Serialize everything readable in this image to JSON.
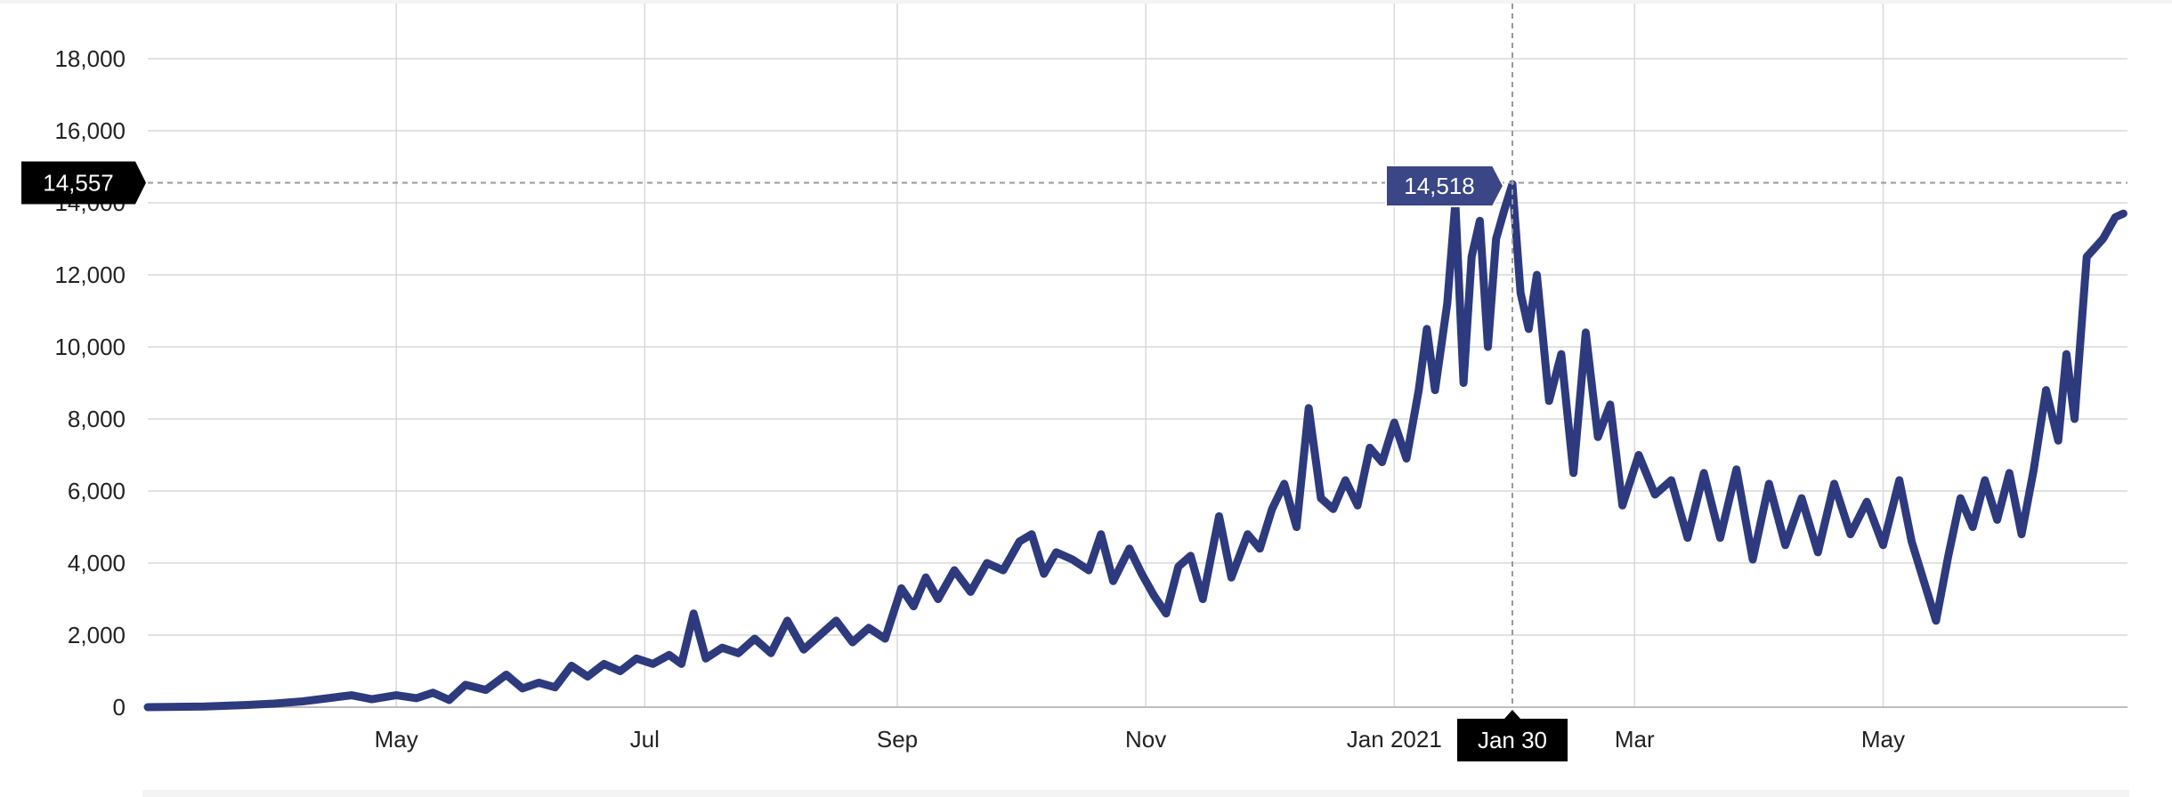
{
  "colors": {
    "line": "#2e3a7e",
    "grid": "#d9d9d9",
    "crosshair": "#9a9a9a",
    "flag_dark": "#000000",
    "flag_point": "#3a4685"
  },
  "chart_data": {
    "type": "line",
    "title": "",
    "xlabel": "",
    "ylabel": "",
    "x_range": [
      "2020-03-01",
      "2021-06-30"
    ],
    "ylim": [
      0,
      18000
    ],
    "y_ticks": [
      0,
      2000,
      4000,
      6000,
      8000,
      10000,
      12000,
      14000,
      16000,
      18000
    ],
    "y_tick_labels": [
      "0",
      "2,000",
      "4,000",
      "6,000",
      "8,000",
      "10,000",
      "12,000",
      "14,000",
      "16,000",
      "18,000"
    ],
    "x_ticks": [
      {
        "date": "2020-05-01",
        "label": "May"
      },
      {
        "date": "2020-07-01",
        "label": "Jul"
      },
      {
        "date": "2020-09-01",
        "label": "Sep"
      },
      {
        "date": "2020-11-01",
        "label": "Nov"
      },
      {
        "date": "2021-01-01",
        "label": "Jan 2021"
      },
      {
        "date": "2021-03-01",
        "label": "Mar"
      },
      {
        "date": "2021-05-01",
        "label": "May"
      }
    ],
    "grid": true,
    "series": [
      {
        "points": [
          [
            "2020-03-01",
            0
          ],
          [
            "2020-03-15",
            20
          ],
          [
            "2020-03-25",
            60
          ],
          [
            "2020-04-01",
            100
          ],
          [
            "2020-04-08",
            160
          ],
          [
            "2020-04-15",
            260
          ],
          [
            "2020-04-20",
            330
          ],
          [
            "2020-04-25",
            220
          ],
          [
            "2020-05-01",
            330
          ],
          [
            "2020-05-06",
            250
          ],
          [
            "2020-05-10",
            400
          ],
          [
            "2020-05-14",
            200
          ],
          [
            "2020-05-18",
            620
          ],
          [
            "2020-05-23",
            480
          ],
          [
            "2020-05-28",
            900
          ],
          [
            "2020-06-01",
            520
          ],
          [
            "2020-06-05",
            680
          ],
          [
            "2020-06-09",
            550
          ],
          [
            "2020-06-13",
            1150
          ],
          [
            "2020-06-17",
            850
          ],
          [
            "2020-06-21",
            1200
          ],
          [
            "2020-06-25",
            1000
          ],
          [
            "2020-06-29",
            1350
          ],
          [
            "2020-07-03",
            1200
          ],
          [
            "2020-07-07",
            1450
          ],
          [
            "2020-07-10",
            1200
          ],
          [
            "2020-07-13",
            2600
          ],
          [
            "2020-07-16",
            1350
          ],
          [
            "2020-07-20",
            1650
          ],
          [
            "2020-07-24",
            1500
          ],
          [
            "2020-07-28",
            1900
          ],
          [
            "2020-08-01",
            1500
          ],
          [
            "2020-08-05",
            2400
          ],
          [
            "2020-08-09",
            1600
          ],
          [
            "2020-08-13",
            2000
          ],
          [
            "2020-08-17",
            2400
          ],
          [
            "2020-08-21",
            1800
          ],
          [
            "2020-08-25",
            2200
          ],
          [
            "2020-08-29",
            1900
          ],
          [
            "2020-09-02",
            3300
          ],
          [
            "2020-09-05",
            2800
          ],
          [
            "2020-09-08",
            3600
          ],
          [
            "2020-09-11",
            3000
          ],
          [
            "2020-09-15",
            3800
          ],
          [
            "2020-09-19",
            3200
          ],
          [
            "2020-09-23",
            4000
          ],
          [
            "2020-09-27",
            3800
          ],
          [
            "2020-10-01",
            4600
          ],
          [
            "2020-10-04",
            4800
          ],
          [
            "2020-10-07",
            3700
          ],
          [
            "2020-10-10",
            4300
          ],
          [
            "2020-10-14",
            4100
          ],
          [
            "2020-10-18",
            3800
          ],
          [
            "2020-10-21",
            4800
          ],
          [
            "2020-10-24",
            3500
          ],
          [
            "2020-10-28",
            4400
          ],
          [
            "2020-10-31",
            3700
          ],
          [
            "2020-11-03",
            3100
          ],
          [
            "2020-11-06",
            2600
          ],
          [
            "2020-11-09",
            3900
          ],
          [
            "2020-11-12",
            4200
          ],
          [
            "2020-11-15",
            3000
          ],
          [
            "2020-11-19",
            5300
          ],
          [
            "2020-11-22",
            3600
          ],
          [
            "2020-11-26",
            4800
          ],
          [
            "2020-11-29",
            4400
          ],
          [
            "2020-12-02",
            5500
          ],
          [
            "2020-12-05",
            6200
          ],
          [
            "2020-12-08",
            5000
          ],
          [
            "2020-12-11",
            8300
          ],
          [
            "2020-12-14",
            5800
          ],
          [
            "2020-12-17",
            5500
          ],
          [
            "2020-12-20",
            6300
          ],
          [
            "2020-12-23",
            5600
          ],
          [
            "2020-12-26",
            7200
          ],
          [
            "2020-12-29",
            6800
          ],
          [
            "2021-01-01",
            7900
          ],
          [
            "2021-01-04",
            6900
          ],
          [
            "2021-01-07",
            8800
          ],
          [
            "2021-01-09",
            10500
          ],
          [
            "2021-01-11",
            8800
          ],
          [
            "2021-01-14",
            11200
          ],
          [
            "2021-01-16",
            14000
          ],
          [
            "2021-01-18",
            9000
          ],
          [
            "2021-01-20",
            12500
          ],
          [
            "2021-01-22",
            13500
          ],
          [
            "2021-01-24",
            10000
          ],
          [
            "2021-01-26",
            13000
          ],
          [
            "2021-01-28",
            13800
          ],
          [
            "2021-01-30",
            14518
          ],
          [
            "2021-02-01",
            11500
          ],
          [
            "2021-02-03",
            10500
          ],
          [
            "2021-02-05",
            12000
          ],
          [
            "2021-02-08",
            8500
          ],
          [
            "2021-02-11",
            9800
          ],
          [
            "2021-02-14",
            6500
          ],
          [
            "2021-02-17",
            10400
          ],
          [
            "2021-02-20",
            7500
          ],
          [
            "2021-02-23",
            8400
          ],
          [
            "2021-02-26",
            5600
          ],
          [
            "2021-03-02",
            7000
          ],
          [
            "2021-03-06",
            5900
          ],
          [
            "2021-03-10",
            6300
          ],
          [
            "2021-03-14",
            4700
          ],
          [
            "2021-03-18",
            6500
          ],
          [
            "2021-03-22",
            4700
          ],
          [
            "2021-03-26",
            6600
          ],
          [
            "2021-03-30",
            4100
          ],
          [
            "2021-04-03",
            6200
          ],
          [
            "2021-04-07",
            4500
          ],
          [
            "2021-04-11",
            5800
          ],
          [
            "2021-04-15",
            4300
          ],
          [
            "2021-04-19",
            6200
          ],
          [
            "2021-04-23",
            4800
          ],
          [
            "2021-04-27",
            5700
          ],
          [
            "2021-05-01",
            4500
          ],
          [
            "2021-05-05",
            6300
          ],
          [
            "2021-05-08",
            4600
          ],
          [
            "2021-05-11",
            3500
          ],
          [
            "2021-05-14",
            2400
          ],
          [
            "2021-05-17",
            4200
          ],
          [
            "2021-05-20",
            5800
          ],
          [
            "2021-05-23",
            5000
          ],
          [
            "2021-05-26",
            6300
          ],
          [
            "2021-05-29",
            5200
          ],
          [
            "2021-06-01",
            6500
          ],
          [
            "2021-06-04",
            4800
          ],
          [
            "2021-06-07",
            6600
          ],
          [
            "2021-06-10",
            8800
          ],
          [
            "2021-06-13",
            7400
          ],
          [
            "2021-06-15",
            9800
          ],
          [
            "2021-06-17",
            8000
          ],
          [
            "2021-06-20",
            12500
          ],
          [
            "2021-06-24",
            13000
          ],
          [
            "2021-06-27",
            13600
          ],
          [
            "2021-06-29",
            13700
          ]
        ]
      }
    ],
    "crosshair": {
      "date": "2021-01-30",
      "date_label": "Jan 30",
      "point_value": 14518,
      "point_label": "14,518",
      "y_value": 14557,
      "y_label": "14,557"
    }
  }
}
